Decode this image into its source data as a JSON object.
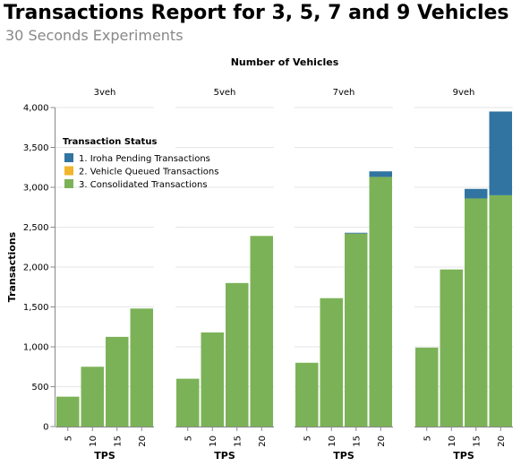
{
  "title": "Transactions Report for 3, 5, 7 and 9 Vehicles",
  "subtitle": "30 Seconds Experiments",
  "chart_data": {
    "type": "bar",
    "stacked": true,
    "facet_header": "Number of Vehicles",
    "facets": [
      "3veh",
      "5veh",
      "7veh",
      "9veh"
    ],
    "categories": [
      5,
      10,
      15,
      20
    ],
    "xlabel": "TPS",
    "ylabel": "Transactions",
    "ylim": [
      0,
      4000
    ],
    "yticks": [
      0,
      500,
      1000,
      1500,
      2000,
      2500,
      3000,
      3500,
      4000
    ],
    "ytick_labels": [
      "0",
      "500",
      "1,000",
      "1,500",
      "2,000",
      "2,500",
      "3,000",
      "3,500",
      "4,000"
    ],
    "grid": true,
    "legend": {
      "title": "Transaction Status",
      "placement": "top-left"
    },
    "series": [
      {
        "name": "1. Iroha Pending Transactions",
        "color": "#3274a1",
        "values": {
          "3veh": [
            0,
            0,
            0,
            0
          ],
          "5veh": [
            0,
            0,
            0,
            0
          ],
          "7veh": [
            0,
            0,
            10,
            70
          ],
          "9veh": [
            0,
            0,
            120,
            1050
          ]
        }
      },
      {
        "name": "2. Vehicle Queued Transactions",
        "color": "#f2b52c",
        "values": {
          "3veh": [
            0,
            0,
            0,
            0
          ],
          "5veh": [
            0,
            0,
            0,
            0
          ],
          "7veh": [
            0,
            0,
            0,
            0
          ],
          "9veh": [
            0,
            0,
            0,
            0
          ]
        }
      },
      {
        "name": "3. Consolidated Transactions",
        "color": "#7cb257",
        "values": {
          "3veh": [
            375,
            750,
            1125,
            1480
          ],
          "5veh": [
            600,
            1180,
            1800,
            2390
          ],
          "7veh": [
            800,
            1610,
            2420,
            3130
          ],
          "9veh": [
            990,
            1970,
            2860,
            2900
          ]
        }
      }
    ]
  }
}
